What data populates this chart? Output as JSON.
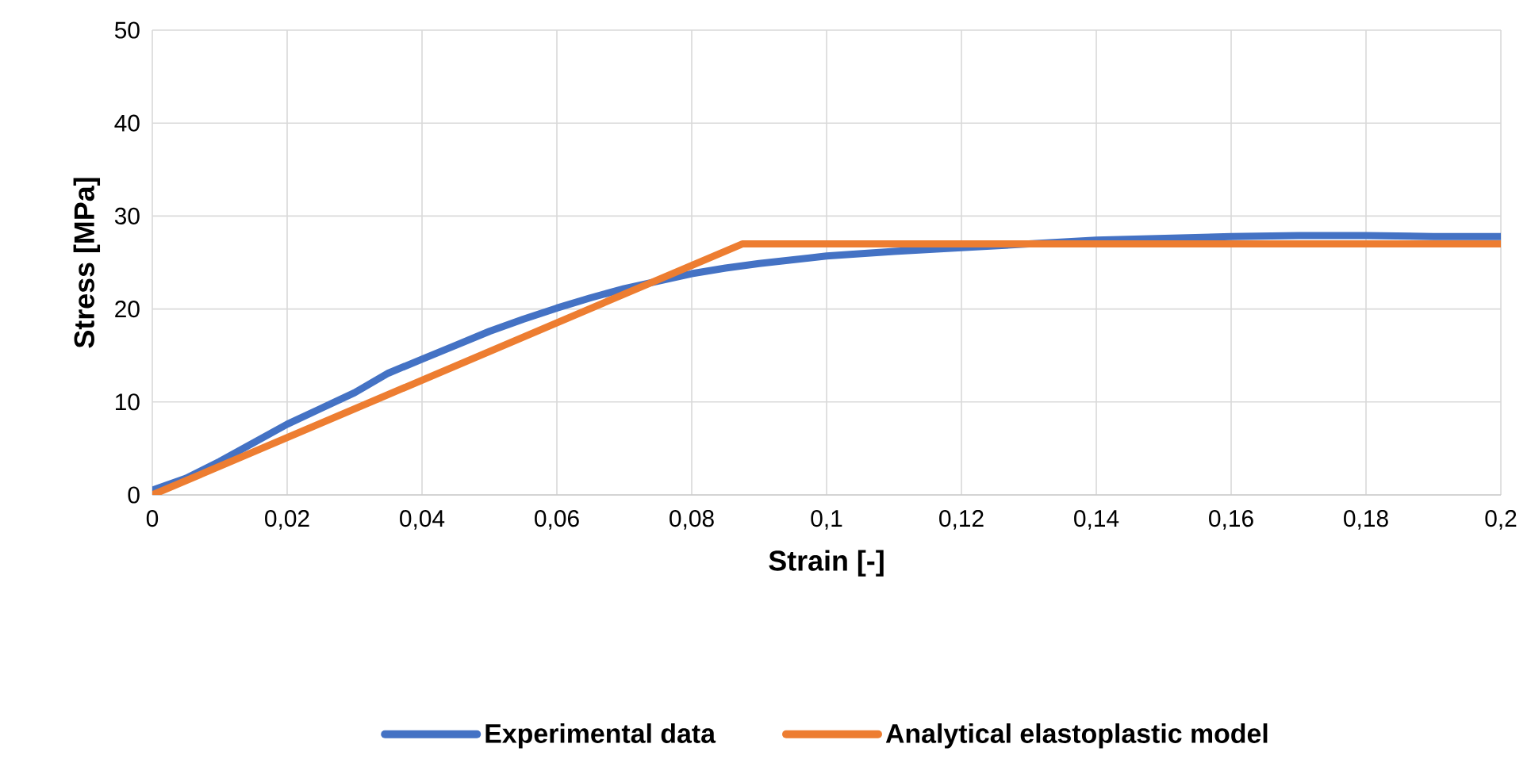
{
  "chart_data": {
    "type": "line",
    "xlabel": "Strain [-]",
    "ylabel": "Stress [MPa]",
    "xlim": [
      0,
      0.2
    ],
    "ylim": [
      0,
      50
    ],
    "xticks": [
      0,
      {
        "value": 0.02,
        "label": "0,02"
      },
      {
        "value": 0.04,
        "label": "0,04"
      },
      {
        "value": 0.06,
        "label": "0,06"
      },
      {
        "value": 0.08,
        "label": "0,08"
      },
      {
        "value": 0.1,
        "label": "0,1"
      },
      {
        "value": 0.12,
        "label": "0,12"
      },
      {
        "value": 0.14,
        "label": "0,14"
      },
      {
        "value": 0.16,
        "label": "0,16"
      },
      {
        "value": 0.18,
        "label": "0,18"
      },
      {
        "value": 0.2,
        "label": "0,2"
      }
    ],
    "yticks": [
      0,
      10,
      20,
      30,
      40,
      50
    ],
    "grid": true,
    "legend": "bottom",
    "marker": "none",
    "line_style": "solid",
    "series": [
      {
        "name": "Experimental data",
        "color": "#4472c4",
        "x": [
          0,
          0.005,
          0.01,
          0.015,
          0.02,
          0.025,
          0.03,
          0.035,
          0.04,
          0.045,
          0.05,
          0.055,
          0.06,
          0.065,
          0.07,
          0.075,
          0.08,
          0.085,
          0.09,
          0.1,
          0.11,
          0.12,
          0.13,
          0.14,
          0.15,
          0.16,
          0.17,
          0.18,
          0.19,
          0.2
        ],
        "values": [
          0.5,
          1.8,
          3.6,
          5.6,
          7.6,
          9.3,
          11,
          13.1,
          14.6,
          16.1,
          17.6,
          18.9,
          20.1,
          21.2,
          22.2,
          23,
          23.8,
          24.4,
          24.9,
          25.7,
          26.2,
          26.6,
          27,
          27.4,
          27.6,
          27.8,
          27.9,
          27.9,
          27.8,
          27.8
        ]
      },
      {
        "name": "Analytical elastoplastic model",
        "color": "#ed7d31",
        "x": [
          0,
          0.0875,
          0.2
        ],
        "values": [
          0,
          27,
          27
        ]
      }
    ]
  }
}
